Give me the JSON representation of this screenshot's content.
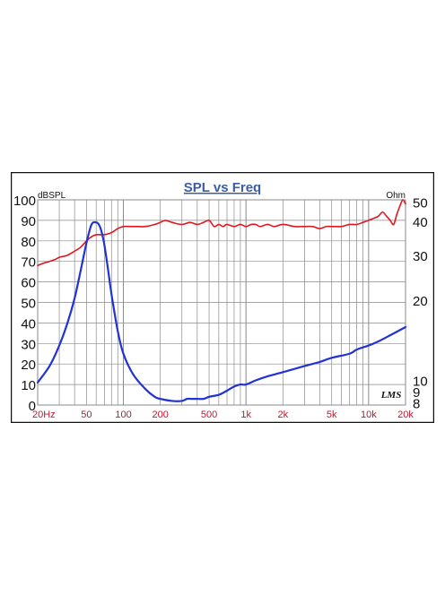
{
  "chart_data": {
    "type": "line",
    "title": "SPL vs Freq",
    "y_left_unit": "dBSPL",
    "y_right_unit": "Ohm",
    "logo": "LMS",
    "x_scale": "log",
    "xlim": [
      20,
      20000
    ],
    "x_ticks": [
      {
        "value": 20,
        "label": "20Hz"
      },
      {
        "value": 50,
        "label": "50"
      },
      {
        "value": 100,
        "label": "100"
      },
      {
        "value": 200,
        "label": "200"
      },
      {
        "value": 500,
        "label": "500"
      },
      {
        "value": 1000,
        "label": "1k"
      },
      {
        "value": 2000,
        "label": "2k"
      },
      {
        "value": 5000,
        "label": "5k"
      },
      {
        "value": 10000,
        "label": "10k"
      },
      {
        "value": 20000,
        "label": "20k"
      }
    ],
    "ylim_left": [
      0,
      100
    ],
    "y_left_ticks": [
      0,
      10,
      20,
      30,
      40,
      50,
      60,
      70,
      80,
      90,
      100
    ],
    "y_right_ticks": [
      {
        "label": "50",
        "at_left": 99
      },
      {
        "label": "40",
        "at_left": 89.5
      },
      {
        "label": "30",
        "at_left": 73
      },
      {
        "label": "20",
        "at_left": 51
      },
      {
        "label": "10",
        "at_left": 12
      },
      {
        "label": "9",
        "at_left": 6.5
      },
      {
        "label": "8",
        "at_left": 1
      }
    ],
    "grid": true,
    "colors": {
      "spl": "#e0161e",
      "impedance": "#2233d6",
      "grid": "#8a8a8a",
      "title": "#3a5da8",
      "axis_label": "#c0162a",
      "frame": "#111111"
    },
    "series": [
      {
        "name": "SPL",
        "axis": "left",
        "x": [
          20,
          22,
          25,
          28,
          30,
          35,
          40,
          45,
          50,
          55,
          60,
          65,
          70,
          80,
          90,
          100,
          120,
          150,
          180,
          200,
          220,
          250,
          300,
          350,
          400,
          450,
          500,
          550,
          600,
          650,
          700,
          800,
          900,
          1000,
          1100,
          1200,
          1300,
          1500,
          1700,
          2000,
          2500,
          3000,
          3500,
          4000,
          4500,
          5000,
          6000,
          7000,
          8000,
          9000,
          10000,
          11000,
          12000,
          13000,
          14000,
          15000,
          16000,
          17000,
          18000,
          19000,
          20000
        ],
        "y": [
          68,
          69,
          70,
          71,
          72,
          73,
          75,
          77,
          80,
          82,
          83,
          83,
          83,
          84,
          86,
          87,
          87,
          87,
          88,
          89,
          90,
          89,
          88,
          89,
          88,
          89,
          90,
          87,
          88,
          87,
          88,
          87,
          88,
          87,
          88,
          88,
          87,
          88,
          87,
          88,
          87,
          87,
          87,
          86,
          87,
          87,
          87,
          88,
          88,
          89,
          90,
          91,
          92,
          94,
          92,
          90,
          88,
          93,
          97,
          100,
          98
        ]
      },
      {
        "name": "Impedance",
        "axis": "left",
        "x": [
          20,
          25,
          30,
          35,
          40,
          45,
          50,
          55,
          60,
          63,
          66,
          70,
          75,
          80,
          90,
          100,
          120,
          150,
          180,
          200,
          250,
          300,
          330,
          360,
          400,
          450,
          500,
          600,
          700,
          800,
          900,
          1000,
          1200,
          1500,
          2000,
          3000,
          4000,
          5000,
          7000,
          8000,
          10000,
          12000,
          15000,
          20000
        ],
        "y": [
          11,
          19,
          29,
          40,
          52,
          66,
          79,
          88,
          89,
          88,
          85,
          78,
          66,
          54,
          36,
          25,
          15,
          8,
          4,
          3,
          2,
          2,
          3,
          3,
          3,
          3,
          4,
          5,
          7,
          9,
          10,
          10,
          12,
          14,
          16,
          19,
          21,
          23,
          25,
          27,
          29,
          31,
          34,
          38
        ]
      }
    ]
  }
}
